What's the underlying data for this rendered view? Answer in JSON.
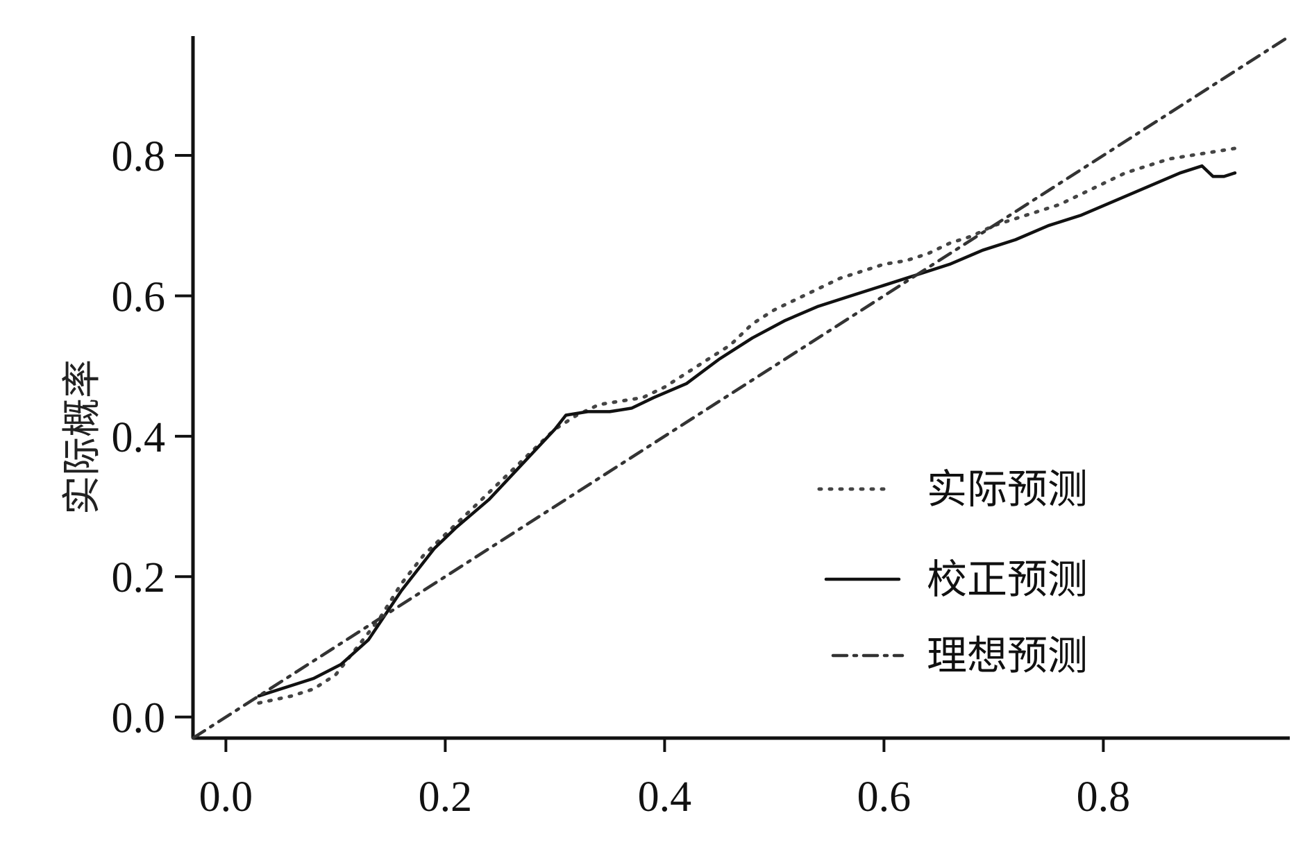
{
  "chart_data": {
    "type": "line",
    "title": "",
    "xlabel": "",
    "ylabel": "实际概率",
    "xlim": [
      -0.03,
      0.97
    ],
    "ylim": [
      -0.03,
      0.97
    ],
    "x_ticks": [
      0.0,
      0.2,
      0.4,
      0.6,
      0.8
    ],
    "x_tick_labels": [
      "0.0",
      "0.2",
      "0.4",
      "0.6",
      "0.8"
    ],
    "y_ticks": [
      0.0,
      0.2,
      0.4,
      0.6,
      0.8
    ],
    "y_tick_labels": [
      "0.0",
      "0.2",
      "0.4",
      "0.6",
      "0.8"
    ],
    "grid": false,
    "legend_position": "lower-right",
    "series": [
      {
        "name": "实际预测",
        "style": "dotted",
        "color": "#444444",
        "x": [
          0.03,
          0.06,
          0.08,
          0.1,
          0.12,
          0.14,
          0.16,
          0.18,
          0.2,
          0.22,
          0.24,
          0.26,
          0.28,
          0.3,
          0.32,
          0.34,
          0.36,
          0.38,
          0.4,
          0.42,
          0.44,
          0.46,
          0.48,
          0.5,
          0.52,
          0.54,
          0.56,
          0.58,
          0.6,
          0.62,
          0.64,
          0.66,
          0.68,
          0.7,
          0.72,
          0.74,
          0.76,
          0.78,
          0.8,
          0.82,
          0.84,
          0.86,
          0.88,
          0.9,
          0.92
        ],
        "y": [
          0.02,
          0.03,
          0.04,
          0.06,
          0.1,
          0.14,
          0.19,
          0.23,
          0.26,
          0.29,
          0.32,
          0.35,
          0.38,
          0.41,
          0.43,
          0.445,
          0.45,
          0.455,
          0.47,
          0.49,
          0.51,
          0.53,
          0.56,
          0.58,
          0.595,
          0.61,
          0.625,
          0.635,
          0.645,
          0.65,
          0.66,
          0.675,
          0.685,
          0.7,
          0.71,
          0.72,
          0.73,
          0.745,
          0.76,
          0.775,
          0.785,
          0.795,
          0.8,
          0.805,
          0.81
        ]
      },
      {
        "name": "校正预测",
        "style": "solid",
        "color": "#111111",
        "x": [
          0.03,
          0.06,
          0.08,
          0.105,
          0.13,
          0.16,
          0.19,
          0.21,
          0.24,
          0.27,
          0.3,
          0.31,
          0.33,
          0.35,
          0.37,
          0.39,
          0.42,
          0.45,
          0.48,
          0.51,
          0.54,
          0.57,
          0.6,
          0.63,
          0.66,
          0.69,
          0.72,
          0.75,
          0.78,
          0.81,
          0.84,
          0.87,
          0.89,
          0.9,
          0.91,
          0.92
        ],
        "y": [
          0.03,
          0.045,
          0.055,
          0.075,
          0.11,
          0.18,
          0.24,
          0.27,
          0.31,
          0.36,
          0.41,
          0.43,
          0.435,
          0.435,
          0.44,
          0.455,
          0.475,
          0.51,
          0.54,
          0.565,
          0.585,
          0.6,
          0.615,
          0.63,
          0.645,
          0.665,
          0.68,
          0.7,
          0.715,
          0.735,
          0.755,
          0.775,
          0.785,
          0.77,
          0.77,
          0.775
        ]
      },
      {
        "name": "理想预测",
        "style": "dash-dot",
        "color": "#333333",
        "x": [
          -0.03,
          0.97
        ],
        "y": [
          -0.03,
          0.97
        ]
      }
    ]
  }
}
